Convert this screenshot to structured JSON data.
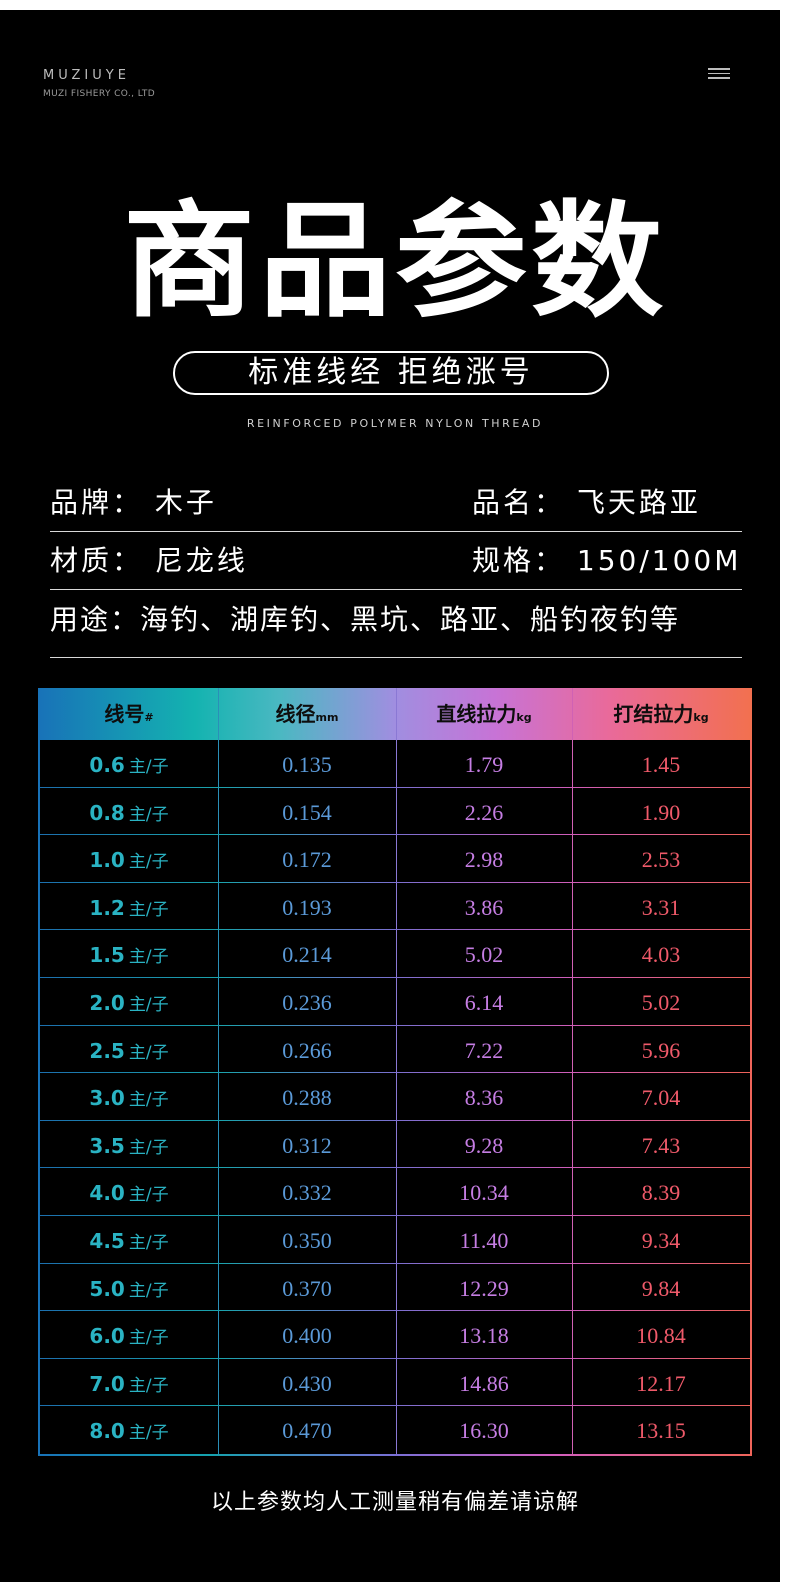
{
  "header": {
    "brand_name": "MUZIUYE",
    "brand_sub": "MUZI FISHERY CO., LTD",
    "menu_icon": "hamburger-menu-icon"
  },
  "hero": {
    "title": "商品参数",
    "slogan": "标准线经 拒绝涨号",
    "subtitle": "REINFORCED POLYMER NYLON THREAD"
  },
  "info": {
    "brand": "品牌：  木子",
    "product_name": "品名：  飞天路亚",
    "material": "材质：  尼龙线",
    "spec": "规格：  150/100M",
    "usage": "用途：海钓、湖库钓、黑坑、路亚、船钓夜钓等"
  },
  "table": {
    "headers": [
      {
        "label": "线号",
        "unit": "#"
      },
      {
        "label": "线径",
        "unit": "mm"
      },
      {
        "label": "直线拉力",
        "unit": "kg"
      },
      {
        "label": "打结拉力",
        "unit": "kg"
      }
    ],
    "unit_suffix": "主/子",
    "rows": [
      {
        "size": "0.6",
        "diameter": "0.135",
        "straight": "1.79",
        "knot": "1.45"
      },
      {
        "size": "0.8",
        "diameter": "0.154",
        "straight": "2.26",
        "knot": "1.90"
      },
      {
        "size": "1.0",
        "diameter": "0.172",
        "straight": "2.98",
        "knot": "2.53"
      },
      {
        "size": "1.2",
        "diameter": "0.193",
        "straight": "3.86",
        "knot": "3.31"
      },
      {
        "size": "1.5",
        "diameter": "0.214",
        "straight": "5.02",
        "knot": "4.03"
      },
      {
        "size": "2.0",
        "diameter": "0.236",
        "straight": "6.14",
        "knot": "5.02"
      },
      {
        "size": "2.5",
        "diameter": "0.266",
        "straight": "7.22",
        "knot": "5.96"
      },
      {
        "size": "3.0",
        "diameter": "0.288",
        "straight": "8.36",
        "knot": "7.04"
      },
      {
        "size": "3.5",
        "diameter": "0.312",
        "straight": "9.28",
        "knot": "7.43"
      },
      {
        "size": "4.0",
        "diameter": "0.332",
        "straight": "10.34",
        "knot": "8.39"
      },
      {
        "size": "4.5",
        "diameter": "0.350",
        "straight": "11.40",
        "knot": "9.34"
      },
      {
        "size": "5.0",
        "diameter": "0.370",
        "straight": "12.29",
        "knot": "9.84"
      },
      {
        "size": "6.0",
        "diameter": "0.400",
        "straight": "13.18",
        "knot": "10.84"
      },
      {
        "size": "7.0",
        "diameter": "0.430",
        "straight": "14.86",
        "knot": "12.17"
      },
      {
        "size": "8.0",
        "diameter": "0.470",
        "straight": "16.30",
        "knot": "13.15"
      }
    ]
  },
  "footer": {
    "note": "以上参数均人工测量稍有偏差请谅解"
  }
}
